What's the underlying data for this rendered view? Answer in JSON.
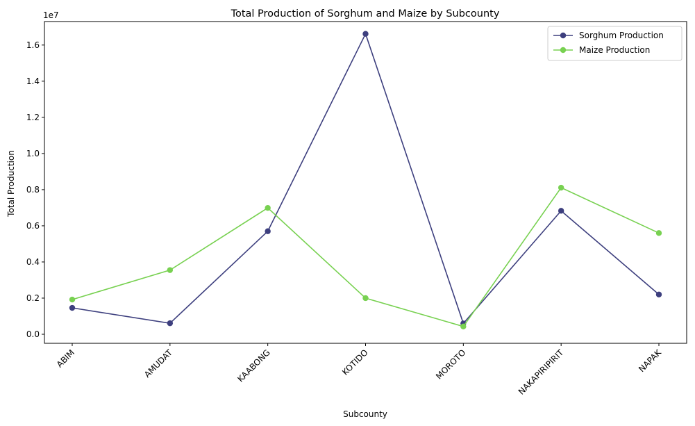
{
  "chart_data": {
    "type": "line",
    "title": "Total Production of Sorghum and Maize by Subcounty",
    "xlabel": "Subcounty",
    "ylabel": "Total Production",
    "y_offset_label": "1e7",
    "categories": [
      "ABIM",
      "AMUDAT",
      "KAABONG",
      "KOTIDO",
      "MOROTO",
      "NAKAPIRIPIRIT",
      "NAPAK"
    ],
    "y_ticks": [
      "0.0",
      "0.2",
      "0.4",
      "0.6",
      "0.8",
      "1.0",
      "1.2",
      "1.4",
      "1.6"
    ],
    "ylim": [
      -0.05,
      1.73
    ],
    "grid": false,
    "legend_position": "top-right",
    "series": [
      {
        "name": "Sorghum Production",
        "color": "#3d3f7e",
        "values": [
          0.146,
          0.061,
          0.57,
          1.662,
          0.06,
          0.683,
          0.22
        ]
      },
      {
        "name": "Maize Production",
        "color": "#78d151",
        "values": [
          0.192,
          0.355,
          0.699,
          0.2,
          0.043,
          0.811,
          0.56
        ]
      }
    ]
  }
}
